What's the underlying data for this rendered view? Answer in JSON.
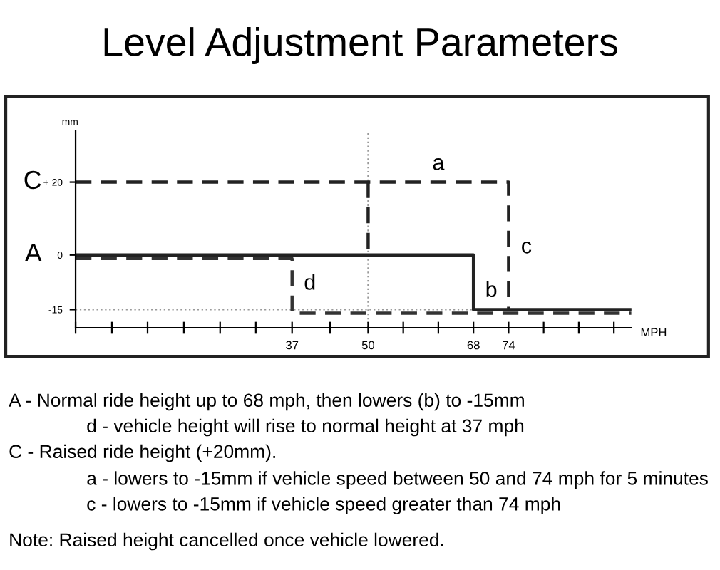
{
  "chart_data": {
    "type": "line",
    "title": "Level Adjustment Parameters",
    "xlabel": "MPH",
    "ylabel": "mm",
    "series": [
      {
        "name": "A",
        "color": "#222222",
        "line_style": "solid",
        "x": [
          0,
          68,
          68,
          95
        ],
        "values": [
          0,
          0,
          -15,
          -15
        ]
      },
      {
        "name": "C",
        "color": "#222222",
        "line_style": "dashed",
        "x": [
          0,
          74,
          74
        ],
        "values": [
          20,
          20,
          -15
        ]
      },
      {
        "color": "#222222",
        "line_style": "dashed",
        "x": [
          50,
          50
        ],
        "values": [
          20,
          0
        ]
      },
      {
        "color": "#333333",
        "line_style": "dashed",
        "x": [
          0,
          37,
          37,
          95
        ],
        "values": [
          -1,
          -1,
          -16,
          -16
        ]
      }
    ],
    "xlim": [
      0,
      95
    ],
    "ylim": [
      -20,
      34
    ],
    "xticks": [
      {
        "value": 0,
        "label": null
      },
      {
        "value": 6.2,
        "label": null
      },
      {
        "value": 12.3,
        "label": null
      },
      {
        "value": 18.5,
        "label": null
      },
      {
        "value": 24.7,
        "label": null
      },
      {
        "value": 30.8,
        "label": null
      },
      37,
      {
        "value": 43.5,
        "label": null
      },
      50,
      {
        "value": 56,
        "label": null
      },
      {
        "value": 62,
        "label": null
      },
      68,
      74,
      {
        "value": 80,
        "label": null
      },
      {
        "value": 86,
        "label": null
      },
      {
        "value": 92,
        "label": null
      }
    ],
    "yticks": [
      {
        "value": 20,
        "label": "+ 20"
      },
      0,
      -15
    ],
    "ref_lines": [
      {
        "axis": "y",
        "value": -15,
        "color": "#999999",
        "line_style": "dotted"
      },
      {
        "axis": "x",
        "value": 50,
        "color": "#999999",
        "line_style": "dotted"
      }
    ],
    "annotations": [
      {
        "text": "a",
        "x": 62,
        "y": 20
      },
      {
        "text": "b",
        "x": 68,
        "y": -10
      },
      {
        "text": "c",
        "x": 74,
        "y": 2
      },
      {
        "text": "d",
        "x": 37,
        "y": -8
      },
      "A - Normal ride height up to 68 mph, then lowers (b) to -15mm",
      "d - vehicle height will rise to normal height at 37 mph",
      "C - Raised ride height (+20mm).",
      "a - lowers to -15mm if vehicle speed between 50 and 74 mph for 5 minutes",
      "c - lowers to -15mm if vehicle speed greater than 74 mph",
      "Note: Raised height cancelled once vehicle lowered."
    ],
    "grid": false,
    "legend": false,
    "marker": "none"
  }
}
